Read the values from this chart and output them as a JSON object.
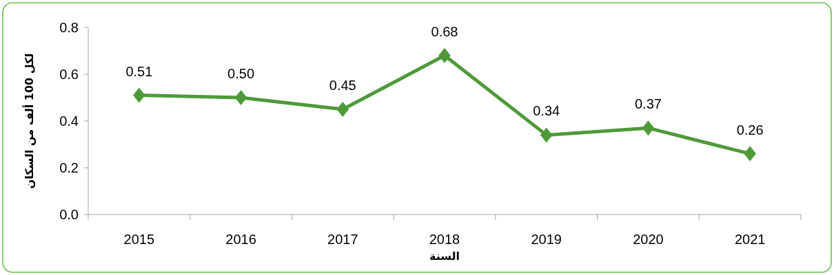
{
  "chart_data": {
    "type": "line",
    "xlabel": "السنة",
    "ylabel": "لكل 100 ألف من السكان",
    "categories": [
      "2015",
      "2016",
      "2017",
      "2018",
      "2019",
      "2020",
      "2021"
    ],
    "series": [
      {
        "color": "#4e9a3a",
        "values": [
          0.51,
          0.5,
          0.45,
          0.68,
          0.34,
          0.37,
          0.26
        ],
        "value_labels": [
          "0.51",
          "0.50",
          "0.45",
          "0.68",
          "0.34",
          "0.37",
          "0.26"
        ]
      }
    ],
    "ylim": [
      0,
      0.8
    ],
    "yticks": [
      {
        "value": 0,
        "label": "0.0"
      },
      {
        "value": 0.2,
        "label": "0.2"
      },
      {
        "value": 0.4,
        "label": "0.4"
      },
      {
        "value": 0.6,
        "label": "0.6"
      },
      {
        "value": 0.8,
        "label": "0.8"
      }
    ],
    "marker": "diamond",
    "line_style": "solid"
  }
}
